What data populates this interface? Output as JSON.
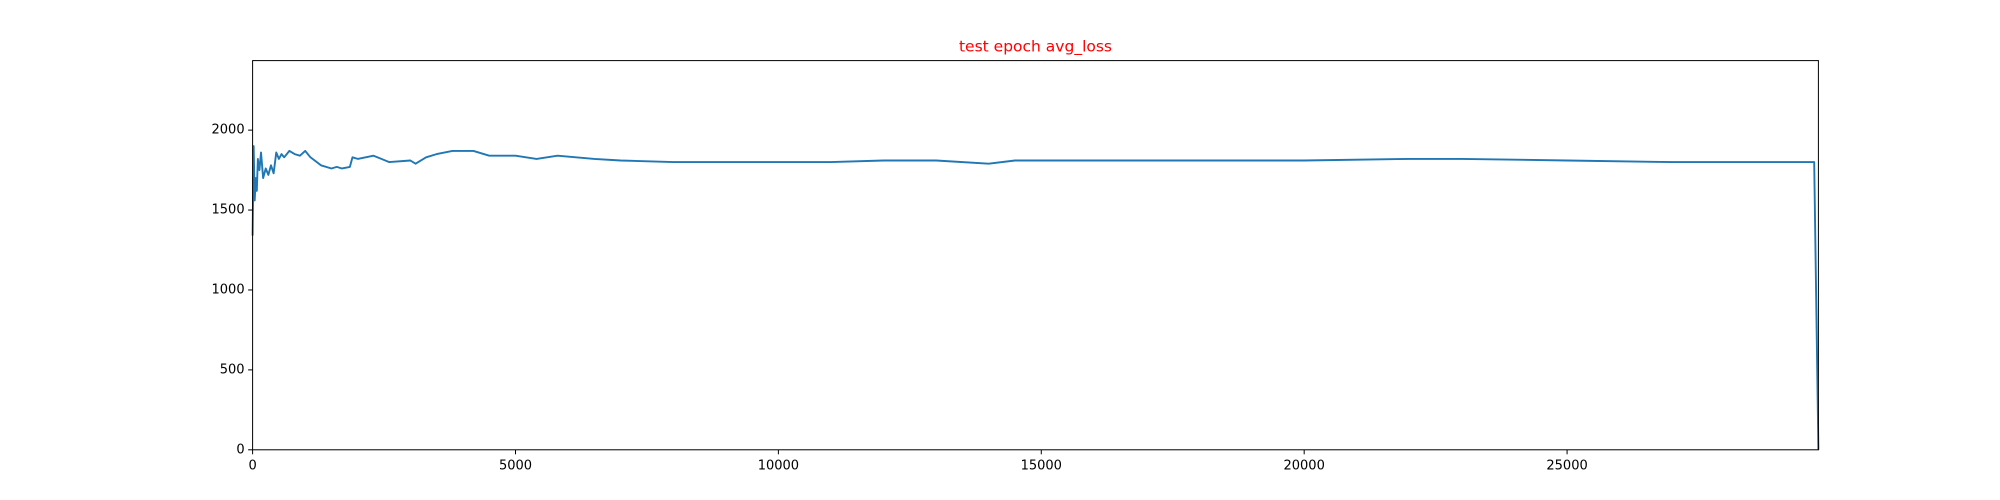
{
  "chart_data": {
    "type": "line",
    "title": "test epoch avg_loss",
    "xlim": [
      0,
      29780
    ],
    "ylim": [
      0,
      2435
    ],
    "xticks": [
      0,
      5000,
      10000,
      15000,
      20000,
      25000
    ],
    "yticks": [
      0,
      500,
      1000,
      1500,
      2000
    ],
    "grid": false,
    "x": [
      0,
      20,
      40,
      60,
      80,
      100,
      130,
      160,
      200,
      250,
      300,
      350,
      400,
      450,
      500,
      550,
      600,
      700,
      800,
      900,
      1000,
      1100,
      1300,
      1500,
      1600,
      1700,
      1850,
      1900,
      2000,
      2300,
      2600,
      3000,
      3100,
      3300,
      3500,
      3800,
      4200,
      4500,
      5000,
      5400,
      5800,
      6500,
      7000,
      8000,
      9000,
      10000,
      11000,
      12000,
      13000,
      14000,
      14500,
      16000,
      18000,
      20000,
      22000,
      23000,
      25000,
      27000,
      28500,
      29700,
      29780
    ],
    "series": [
      {
        "name": "avg_loss",
        "color": "#1f77b4",
        "values": [
          1340,
          1900,
          1560,
          1700,
          1620,
          1820,
          1750,
          1860,
          1700,
          1760,
          1720,
          1780,
          1730,
          1860,
          1820,
          1850,
          1830,
          1870,
          1850,
          1840,
          1870,
          1830,
          1780,
          1760,
          1770,
          1760,
          1770,
          1830,
          1820,
          1840,
          1800,
          1810,
          1790,
          1830,
          1850,
          1870,
          1870,
          1840,
          1840,
          1820,
          1840,
          1820,
          1810,
          1800,
          1800,
          1800,
          1800,
          1810,
          1810,
          1790,
          1810,
          1810,
          1810,
          1810,
          1820,
          1820,
          1810,
          1800,
          1800,
          1800,
          0
        ]
      }
    ]
  }
}
